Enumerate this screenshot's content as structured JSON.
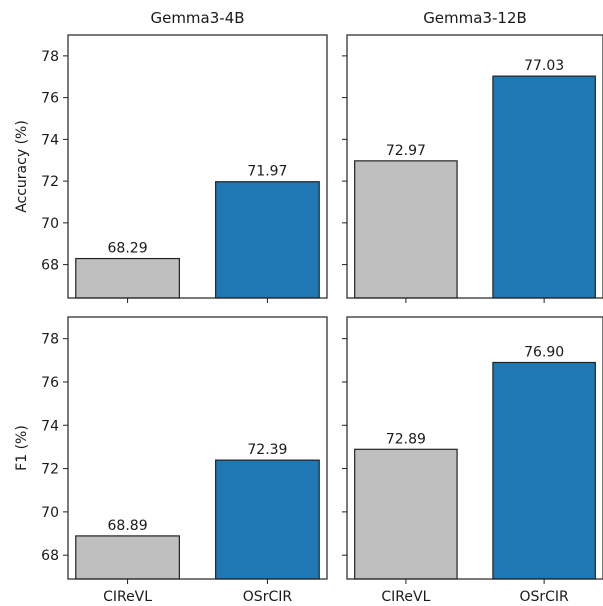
{
  "chart_data": {
    "type": "bar",
    "layout": "2x2 grid, shared x categories per column, shared y axis per row",
    "column_titles": [
      "Gemma3-4B",
      "Gemma3-12B"
    ],
    "row_ylabels": [
      "Accuracy (%)",
      "F1 (%)"
    ],
    "categories": [
      "CIReVL",
      "OSrCIR"
    ],
    "bar_colors": {
      "CIReVL": "#bfbfbf",
      "OSrCIR": "#1f77b4"
    },
    "panels": [
      {
        "row": 0,
        "col": 0,
        "model": "Gemma3-4B",
        "metric": "Accuracy (%)",
        "ylim": [
          66.4,
          79.0
        ],
        "yticks": [
          68,
          70,
          72,
          74,
          76,
          78
        ],
        "values": [
          68.29,
          71.97
        ],
        "labels": [
          "68.29",
          "71.97"
        ]
      },
      {
        "row": 0,
        "col": 1,
        "model": "Gemma3-12B",
        "metric": "Accuracy (%)",
        "ylim": [
          66.4,
          79.0
        ],
        "yticks": [
          68,
          70,
          72,
          74,
          76,
          78
        ],
        "values": [
          72.97,
          77.03
        ],
        "labels": [
          "72.97",
          "77.03"
        ]
      },
      {
        "row": 1,
        "col": 0,
        "model": "Gemma3-4B",
        "metric": "F1 (%)",
        "ylim": [
          66.9,
          79.0
        ],
        "yticks": [
          68,
          70,
          72,
          74,
          76,
          78
        ],
        "values": [
          68.89,
          72.39
        ],
        "labels": [
          "68.89",
          "72.39"
        ]
      },
      {
        "row": 1,
        "col": 1,
        "model": "Gemma3-12B",
        "metric": "F1 (%)",
        "ylim": [
          66.9,
          79.0
        ],
        "yticks": [
          68,
          70,
          72,
          74,
          76,
          78
        ],
        "values": [
          72.89,
          76.9
        ],
        "labels": [
          "72.89",
          "76.90"
        ]
      }
    ],
    "grid": false,
    "legend": "none"
  }
}
